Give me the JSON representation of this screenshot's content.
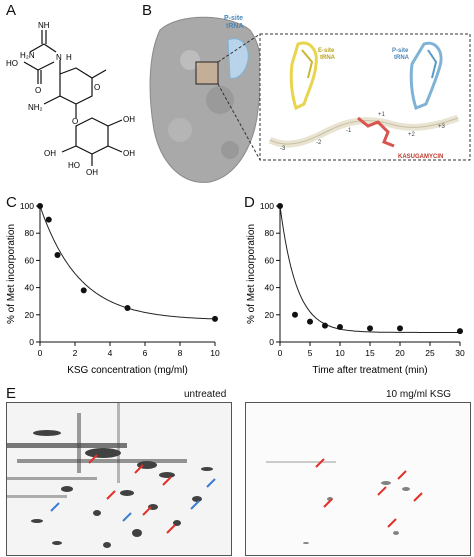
{
  "panels": {
    "A": {
      "letter": "A",
      "atoms": {
        "nh": "NH",
        "h2n_top": "H₂N",
        "ho": "HO",
        "o_acid": "O",
        "n": "N",
        "h": "H",
        "nh2": "NH₂",
        "o_ring": "O",
        "o_link": "O",
        "oh1": "OH",
        "oh2": "OH",
        "oh3": "OH",
        "oh4": "OH",
        "ho2": "HO"
      }
    },
    "B": {
      "letter": "B",
      "labels": {
        "psite_small": "P-site\ntRNA",
        "esite": "E-site\ntRNA",
        "psite": "P-site\ntRNA",
        "kasugamycin": "KASUGAMYCIN",
        "positions": [
          "-3",
          "-2",
          "-1",
          "+1",
          "+2",
          "+3"
        ]
      },
      "colors": {
        "esite": "#e8d44d",
        "psite": "#7fb3d5",
        "ksg": "#d9534f",
        "ribosome": "#a9a9a9"
      }
    },
    "C": {
      "letter": "C"
    },
    "D": {
      "letter": "D"
    },
    "E": {
      "letter": "E",
      "gel_left_title": "untreated",
      "gel_right_title": "10 mg/ml KSG",
      "arrow_colors": {
        "red": "#e0322a",
        "blue": "#3a7bd5"
      }
    }
  },
  "chart_data": [
    {
      "type": "scatter",
      "panel": "C",
      "xlabel": "KSG concentration (mg/ml)",
      "ylabel": "% of Met incorporation",
      "xlim": [
        0,
        10
      ],
      "ylim": [
        0,
        100
      ],
      "xticks": [
        0,
        2,
        4,
        6,
        8,
        10
      ],
      "yticks": [
        0,
        20,
        40,
        60,
        80,
        100
      ],
      "x": [
        0,
        0.5,
        1,
        2.5,
        5,
        10
      ],
      "y": [
        100,
        90,
        64,
        38,
        25,
        17
      ],
      "fit": "exponential decay",
      "grid": false
    },
    {
      "type": "scatter",
      "panel": "D",
      "xlabel": "Time after treatment (min)",
      "ylabel": "% of Met incorporation",
      "xlim": [
        0,
        30
      ],
      "ylim": [
        0,
        100
      ],
      "xticks": [
        0,
        5,
        10,
        15,
        20,
        25,
        30
      ],
      "yticks": [
        0,
        20,
        40,
        60,
        80,
        100
      ],
      "x": [
        0,
        2.5,
        5,
        7.5,
        10,
        15,
        20,
        30
      ],
      "y": [
        100,
        20,
        15,
        12,
        11,
        10,
        10,
        8
      ],
      "fit": "exponential decay",
      "grid": false
    }
  ]
}
